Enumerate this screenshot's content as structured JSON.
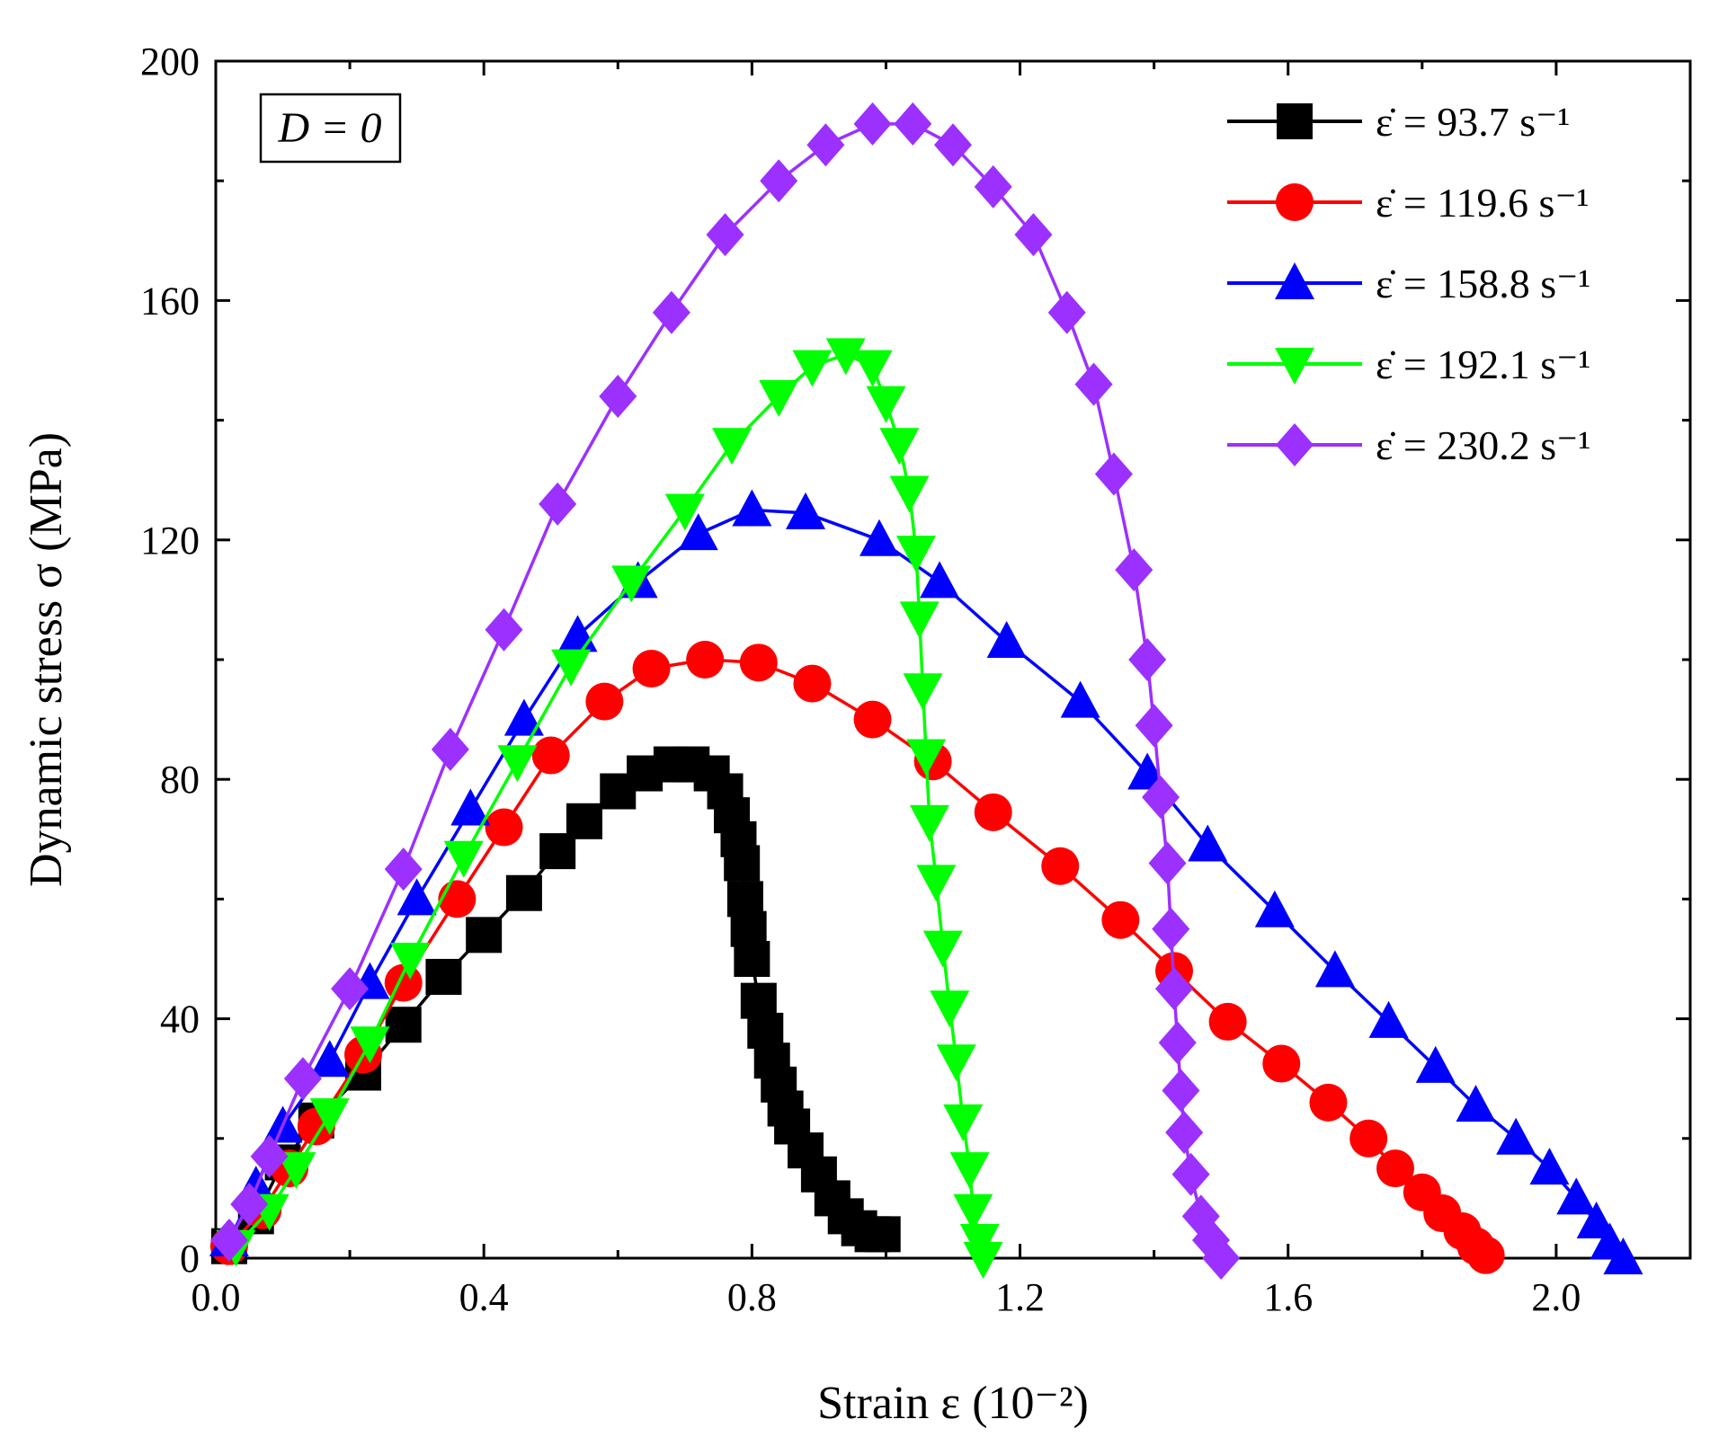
{
  "chart_data": {
    "type": "line",
    "title": "",
    "xlabel": "Strain ε (10⁻²)",
    "ylabel": "Dynamic stress σ (MPa)",
    "xlim": [
      0.0,
      2.2
    ],
    "ylim": [
      0,
      200
    ],
    "xticks": [
      "0.0",
      "0.4",
      "0.8",
      "1.2",
      "1.6",
      "2.0"
    ],
    "yticks": [
      "0",
      "40",
      "80",
      "120",
      "160",
      "200"
    ],
    "annotation": "D = 0",
    "legend_position": "top-right",
    "grid": false,
    "series": [
      {
        "name": "ε̇ = 93.7 s⁻¹",
        "color": "#000000",
        "marker": "square",
        "points": [
          [
            0.02,
            2
          ],
          [
            0.06,
            7
          ],
          [
            0.1,
            16
          ],
          [
            0.15,
            23
          ],
          [
            0.22,
            31
          ],
          [
            0.28,
            39
          ],
          [
            0.34,
            47
          ],
          [
            0.4,
            54
          ],
          [
            0.46,
            61
          ],
          [
            0.51,
            68
          ],
          [
            0.55,
            73
          ],
          [
            0.6,
            78
          ],
          [
            0.64,
            81
          ],
          [
            0.68,
            82.5
          ],
          [
            0.71,
            82.5
          ],
          [
            0.74,
            81
          ],
          [
            0.76,
            78
          ],
          [
            0.77,
            74
          ],
          [
            0.78,
            70
          ],
          [
            0.785,
            66
          ],
          [
            0.79,
            60
          ],
          [
            0.795,
            55
          ],
          [
            0.8,
            50
          ],
          [
            0.81,
            43
          ],
          [
            0.82,
            38
          ],
          [
            0.83,
            33
          ],
          [
            0.84,
            29
          ],
          [
            0.85,
            25
          ],
          [
            0.86,
            22
          ],
          [
            0.88,
            18
          ],
          [
            0.9,
            14
          ],
          [
            0.92,
            10
          ],
          [
            0.94,
            7
          ],
          [
            0.96,
            5
          ],
          [
            0.98,
            4
          ],
          [
            0.995,
            4
          ]
        ]
      },
      {
        "name": "ε̇ = 119.6 s⁻¹",
        "color": "#ff0000",
        "marker": "circle",
        "points": [
          [
            0.02,
            2
          ],
          [
            0.07,
            8
          ],
          [
            0.11,
            15
          ],
          [
            0.15,
            22
          ],
          [
            0.22,
            34
          ],
          [
            0.28,
            46
          ],
          [
            0.36,
            60
          ],
          [
            0.43,
            72
          ],
          [
            0.5,
            84
          ],
          [
            0.58,
            93
          ],
          [
            0.65,
            98.5
          ],
          [
            0.73,
            100
          ],
          [
            0.81,
            99.5
          ],
          [
            0.89,
            96
          ],
          [
            0.98,
            90
          ],
          [
            1.07,
            83
          ],
          [
            1.16,
            74.5
          ],
          [
            1.26,
            65.5
          ],
          [
            1.35,
            56.5
          ],
          [
            1.43,
            48
          ],
          [
            1.51,
            39.5
          ],
          [
            1.59,
            32.5
          ],
          [
            1.66,
            26
          ],
          [
            1.72,
            20
          ],
          [
            1.76,
            15
          ],
          [
            1.8,
            11
          ],
          [
            1.83,
            7.5
          ],
          [
            1.86,
            4.5
          ],
          [
            1.88,
            2
          ],
          [
            1.895,
            0.5
          ]
        ]
      },
      {
        "name": "ε̇ = 158.8 s⁻¹",
        "color": "#0000ff",
        "marker": "triangle-up",
        "points": [
          [
            0.02,
            3
          ],
          [
            0.06,
            12
          ],
          [
            0.1,
            22
          ],
          [
            0.17,
            33
          ],
          [
            0.23,
            46
          ],
          [
            0.3,
            60
          ],
          [
            0.38,
            75
          ],
          [
            0.46,
            90
          ],
          [
            0.54,
            104
          ],
          [
            0.63,
            113
          ],
          [
            0.72,
            121
          ],
          [
            0.8,
            125
          ],
          [
            0.88,
            124.5
          ],
          [
            0.99,
            120
          ],
          [
            1.08,
            113
          ],
          [
            1.18,
            103
          ],
          [
            1.29,
            93
          ],
          [
            1.39,
            81
          ],
          [
            1.48,
            69
          ],
          [
            1.58,
            58
          ],
          [
            1.67,
            48
          ],
          [
            1.75,
            39.5
          ],
          [
            1.82,
            32
          ],
          [
            1.88,
            25.5
          ],
          [
            1.94,
            20
          ],
          [
            1.99,
            15
          ],
          [
            2.03,
            10
          ],
          [
            2.06,
            6
          ],
          [
            2.08,
            2.5
          ],
          [
            2.1,
            0
          ]
        ]
      },
      {
        "name": "ε̇ = 192.1 s⁻¹",
        "color": "#00ff00",
        "marker": "triangle-down",
        "points": [
          [
            0.03,
            2
          ],
          [
            0.08,
            8
          ],
          [
            0.12,
            15
          ],
          [
            0.17,
            24
          ],
          [
            0.23,
            36
          ],
          [
            0.29,
            50
          ],
          [
            0.37,
            67
          ],
          [
            0.45,
            83
          ],
          [
            0.53,
            99
          ],
          [
            0.62,
            113
          ],
          [
            0.7,
            125
          ],
          [
            0.77,
            136
          ],
          [
            0.84,
            144
          ],
          [
            0.89,
            149
          ],
          [
            0.94,
            151
          ],
          [
            0.98,
            149
          ],
          [
            1.0,
            143
          ],
          [
            1.02,
            136
          ],
          [
            1.035,
            128
          ],
          [
            1.045,
            118
          ],
          [
            1.05,
            107
          ],
          [
            1.055,
            95
          ],
          [
            1.06,
            84
          ],
          [
            1.065,
            73
          ],
          [
            1.075,
            63
          ],
          [
            1.085,
            52
          ],
          [
            1.095,
            42
          ],
          [
            1.105,
            33
          ],
          [
            1.115,
            23
          ],
          [
            1.125,
            15
          ],
          [
            1.13,
            8
          ],
          [
            1.14,
            3
          ],
          [
            1.145,
            0
          ]
        ]
      },
      {
        "name": "ε̇ = 230.2 s⁻¹",
        "color": "#9b30ff",
        "marker": "diamond",
        "points": [
          [
            0.02,
            3
          ],
          [
            0.05,
            9
          ],
          [
            0.08,
            17
          ],
          [
            0.13,
            30
          ],
          [
            0.2,
            45
          ],
          [
            0.28,
            65
          ],
          [
            0.35,
            85
          ],
          [
            0.43,
            105
          ],
          [
            0.51,
            126
          ],
          [
            0.6,
            144
          ],
          [
            0.68,
            158
          ],
          [
            0.76,
            171
          ],
          [
            0.84,
            180
          ],
          [
            0.91,
            186
          ],
          [
            0.98,
            189.5
          ],
          [
            1.04,
            189.5
          ],
          [
            1.1,
            186
          ],
          [
            1.16,
            179
          ],
          [
            1.22,
            171
          ],
          [
            1.27,
            158
          ],
          [
            1.31,
            146
          ],
          [
            1.34,
            131
          ],
          [
            1.37,
            115
          ],
          [
            1.39,
            100
          ],
          [
            1.4,
            89
          ],
          [
            1.41,
            77
          ],
          [
            1.42,
            66
          ],
          [
            1.425,
            55
          ],
          [
            1.43,
            45
          ],
          [
            1.435,
            36
          ],
          [
            1.44,
            28
          ],
          [
            1.445,
            21
          ],
          [
            1.455,
            14
          ],
          [
            1.47,
            7
          ],
          [
            1.485,
            3
          ],
          [
            1.5,
            0
          ]
        ]
      }
    ]
  }
}
